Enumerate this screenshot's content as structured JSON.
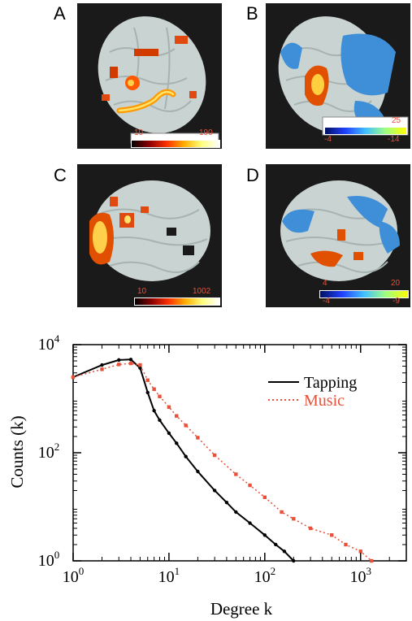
{
  "panels": {
    "A": {
      "letter": "A",
      "cbar_min": "10",
      "cbar_max": "190"
    },
    "B": {
      "letter": "B",
      "cbar_pos_max": "25",
      "cbar_neg_min": "-4",
      "cbar_neg_max": "-14"
    },
    "C": {
      "letter": "C",
      "cbar_min": "10",
      "cbar_max": "1002"
    },
    "D": {
      "letter": "D",
      "cbar_pos_min": "4",
      "cbar_pos_max": "20",
      "cbar_neg_min": "-4",
      "cbar_neg_max": "-9"
    }
  },
  "colors": {
    "hot": "#ff5a00",
    "cool": "#3f8fd8",
    "brain": "#c9d4d2",
    "panel_bg": "#1a1a1a",
    "tapping": "#000000",
    "music": "#e8503a"
  },
  "chart_data": {
    "type": "line",
    "xlabel": "Degree k",
    "ylabel": "Counts (k)",
    "xscale": "log",
    "yscale": "log",
    "xlim": [
      1,
      3000
    ],
    "ylim": [
      1,
      10000
    ],
    "x_ticks": [
      {
        "value": 1,
        "base": "10",
        "exp": "0"
      },
      {
        "value": 10,
        "base": "10",
        "exp": "1"
      },
      {
        "value": 100,
        "base": "10",
        "exp": "2"
      },
      {
        "value": 1000,
        "base": "10",
        "exp": "3"
      }
    ],
    "y_ticks": [
      {
        "value": 1,
        "base": "10",
        "exp": "0"
      },
      {
        "value": 100,
        "base": "10",
        "exp": "2"
      },
      {
        "value": 10000,
        "base": "10",
        "exp": "4"
      }
    ],
    "legend_position": "top-right",
    "series": [
      {
        "name": "Tapping",
        "color": "#000000",
        "x": [
          1,
          2,
          3,
          4,
          5,
          6,
          7,
          8,
          10,
          12,
          15,
          20,
          30,
          40,
          50,
          70,
          100,
          130,
          160,
          200
        ],
        "y": [
          2500,
          4200,
          5200,
          5300,
          3700,
          1300,
          600,
          400,
          230,
          150,
          85,
          45,
          20,
          12,
          8,
          5,
          3,
          2,
          1.5,
          1
        ]
      },
      {
        "name": "Music",
        "color": "#e8503a",
        "x": [
          1,
          2,
          3,
          4,
          5,
          6,
          7,
          8,
          10,
          12,
          15,
          20,
          30,
          50,
          70,
          100,
          150,
          200,
          300,
          500,
          700,
          1000,
          1300
        ],
        "y": [
          2500,
          3500,
          4300,
          4500,
          4200,
          2200,
          1500,
          1100,
          700,
          480,
          320,
          190,
          90,
          40,
          25,
          15,
          8,
          6,
          4,
          3,
          2,
          1.5,
          1
        ]
      }
    ]
  }
}
